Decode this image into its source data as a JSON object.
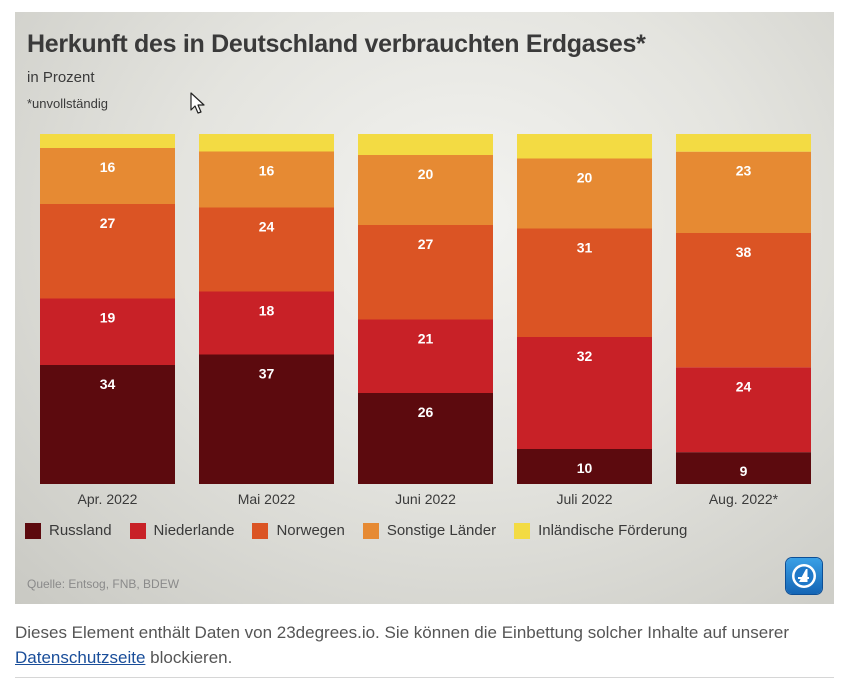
{
  "chart_data": {
    "type": "bar",
    "stacked": true,
    "title": "Herkunft des in Deutschland verbrauchten Erdgases*",
    "subtitle": "in Prozent",
    "note": "*unvollständig",
    "source": "Quelle: Entsog, FNB, BDEW",
    "categories": [
      "Apr. 2022",
      "Mai 2022",
      "Juni 2022",
      "Juli 2022",
      "Aug. 2022*"
    ],
    "ylim": [
      0,
      100
    ],
    "series": [
      {
        "name": "Russland",
        "color": "#5c0a0e",
        "values": [
          34,
          37,
          26,
          10,
          9
        ]
      },
      {
        "name": "Niederlande",
        "color": "#c82127",
        "values": [
          19,
          18,
          21,
          32,
          24
        ]
      },
      {
        "name": "Norwegen",
        "color": "#db5424",
        "values": [
          27,
          24,
          27,
          31,
          38
        ]
      },
      {
        "name": "Sonstige Länder",
        "color": "#e68a33",
        "values": [
          16,
          16,
          20,
          20,
          23
        ]
      },
      {
        "name": "Inländische Förderung",
        "color": "#f3db43",
        "values": [
          4,
          5,
          6,
          7,
          5
        ]
      }
    ],
    "labeled_series": [
      "Russland",
      "Niederlande",
      "Norwegen",
      "Sonstige Länder"
    ],
    "legend_position": "bottom-left"
  },
  "footer": {
    "text_before": "Dieses Element enthält Daten von 23degrees.io. Sie können die Einbettung solcher Inhalte auf unserer ",
    "link_label": "Datenschutzseite",
    "text_after": " blockieren."
  },
  "icons": {
    "cursor": "cursor-arrow-icon",
    "logo": "broadcaster-logo-icon"
  }
}
